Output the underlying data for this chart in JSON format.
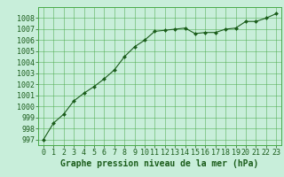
{
  "x": [
    0,
    1,
    2,
    3,
    4,
    5,
    6,
    7,
    8,
    9,
    10,
    11,
    12,
    13,
    14,
    15,
    16,
    17,
    18,
    19,
    20,
    21,
    22,
    23
  ],
  "y": [
    997.0,
    998.5,
    999.3,
    1000.5,
    1001.2,
    1001.8,
    1002.5,
    1003.3,
    1004.5,
    1005.4,
    1006.0,
    1006.8,
    1006.9,
    1007.0,
    1007.1,
    1006.6,
    1006.7,
    1006.7,
    1007.0,
    1007.1,
    1007.7,
    1007.7,
    1008.0,
    1008.4
  ],
  "xlabel": "Graphe pression niveau de la mer (hPa)",
  "ylim": [
    996.5,
    1009.0
  ],
  "xlim": [
    -0.5,
    23.5
  ],
  "yticks": [
    997,
    998,
    999,
    1000,
    1001,
    1002,
    1003,
    1004,
    1005,
    1006,
    1007,
    1008
  ],
  "xticks": [
    0,
    1,
    2,
    3,
    4,
    5,
    6,
    7,
    8,
    9,
    10,
    11,
    12,
    13,
    14,
    15,
    16,
    17,
    18,
    19,
    20,
    21,
    22,
    23
  ],
  "line_color": "#1a5c1a",
  "marker_color": "#1a5c1a",
  "bg_color": "#c8eeda",
  "grid_color": "#4aaa4a",
  "xlabel_fontsize": 7,
  "tick_fontsize": 6,
  "label_color": "#1a5c1a"
}
